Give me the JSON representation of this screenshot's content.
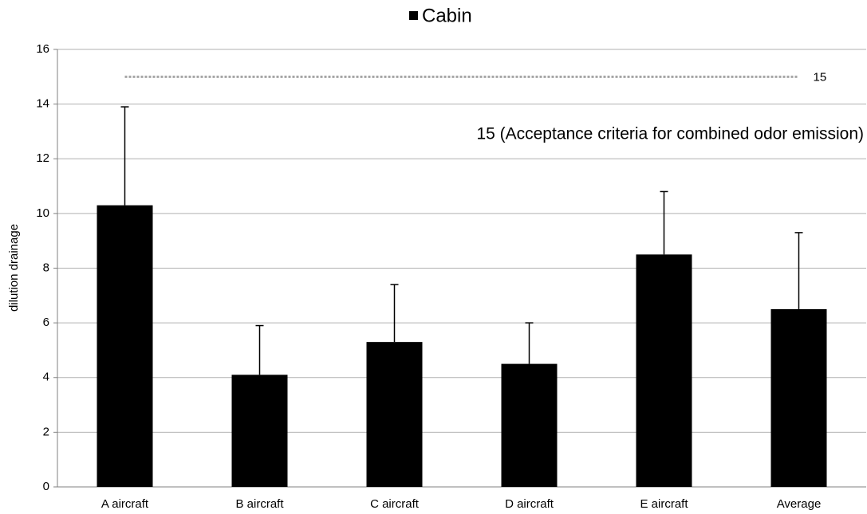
{
  "chart_data": {
    "type": "bar",
    "categories": [
      "A aircraft",
      "B aircraft",
      "C aircraft",
      "D aircraft",
      "E aircraft",
      "Average"
    ],
    "series": [
      {
        "name": "Cabin",
        "color": "#000000",
        "values": [
          10.3,
          4.1,
          5.3,
          4.5,
          8.5,
          6.5
        ],
        "errors": [
          3.6,
          1.8,
          2.1,
          1.5,
          2.3,
          2.8
        ]
      }
    ],
    "y_label": "dilution drainage",
    "ylim": [
      0,
      16
    ],
    "yticks": [
      0,
      2,
      4,
      6,
      8,
      10,
      12,
      14,
      16
    ],
    "grid": true,
    "legend": "top",
    "reference_line": {
      "value": 15,
      "color": "#a6a6a6"
    },
    "annotation": "15 (Acceptance criteria for combined odor emission)"
  }
}
